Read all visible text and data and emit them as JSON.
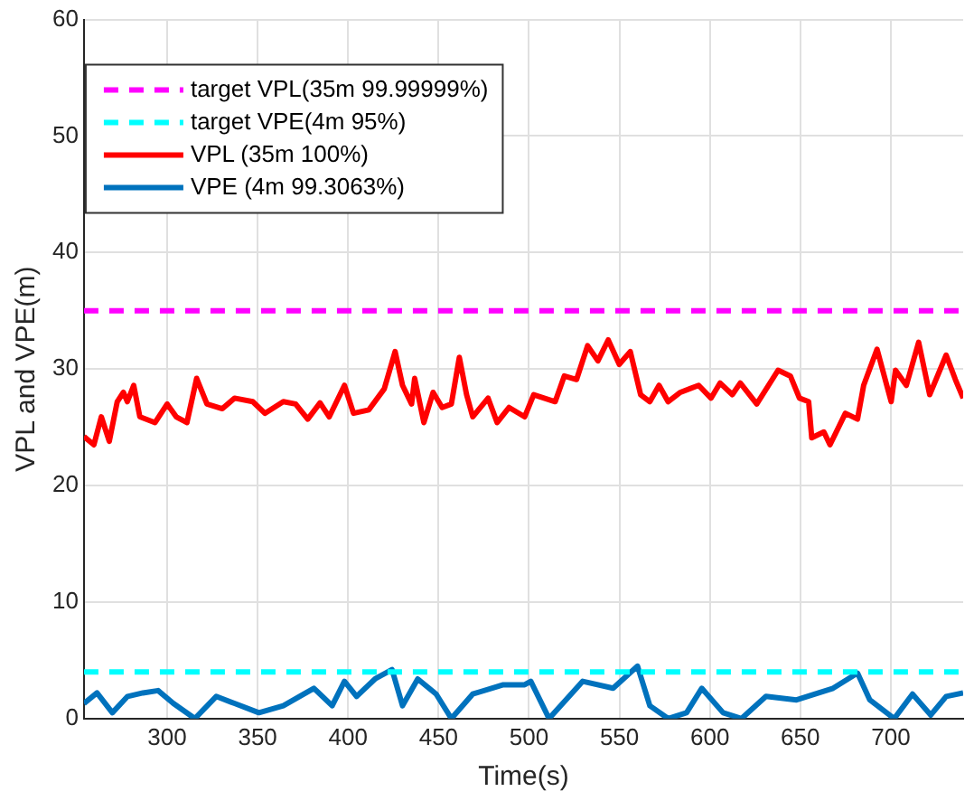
{
  "chart_data": {
    "type": "line",
    "xlabel": "Time(s)",
    "ylabel": "VPL and VPE(m)",
    "xlim": [
      254,
      740
    ],
    "xticks": [
      300,
      350,
      400,
      450,
      500,
      550,
      600,
      650,
      700
    ],
    "ylim": [
      0,
      60
    ],
    "yticks": [
      0,
      10,
      20,
      30,
      40,
      50,
      60
    ],
    "grid": true,
    "legend": "top left",
    "marker": "none",
    "series": [
      {
        "name": "target VPL(35m 99.99999%)",
        "color": "#ff00ff",
        "line_style": "dashed",
        "x": [
          254,
          740
        ],
        "values": [
          35,
          35
        ]
      },
      {
        "name": "target VPE(4m 95%)",
        "color": "#00ffff",
        "line_style": "dashed",
        "x": [
          254,
          740
        ],
        "values": [
          4,
          4
        ]
      },
      {
        "name": "VPL (35m 100%)",
        "color": "#ff0000",
        "line_style": "solid",
        "x": [
          254,
          259.5,
          263.6,
          268,
          272.4,
          275.8,
          278,
          281.5,
          284.9,
          293.3,
          300,
          305,
          310.9,
          316.3,
          322,
          330.5,
          337.2,
          347.3,
          354,
          364.2,
          371,
          377.7,
          384.5,
          389.6,
          398,
          403,
          411.5,
          420,
          426,
          430.1,
          435.1,
          436.8,
          441.9,
          447,
          452,
          457.1,
          461.5,
          465.5,
          468.9,
          477.4,
          482.4,
          489,
          497.6,
          502.6,
          514.5,
          519.5,
          526.3,
          532.4,
          538.1,
          543.8,
          549.9,
          556,
          561.7,
          566.8,
          571.9,
          576.9,
          583.7,
          593.8,
          600.6,
          605.6,
          612.4,
          616.8,
          625.9,
          637.7,
          644.5,
          649.5,
          654.6,
          656.3,
          663,
          666.4,
          674.9,
          681.6,
          685,
          692.4,
          700.2,
          702.6,
          708.6,
          715.4,
          721.5,
          730.6,
          735.7,
          740
        ],
        "values": [
          24.2,
          23.5,
          25.9,
          23.8,
          27.2,
          28,
          27.2,
          28.6,
          25.9,
          25.4,
          27,
          25.9,
          25.4,
          29.2,
          27,
          26.6,
          27.5,
          27.2,
          26.2,
          27.2,
          27,
          25.7,
          27.1,
          25.9,
          28.6,
          26.2,
          26.5,
          28.3,
          31.5,
          28.6,
          27,
          29.2,
          25.4,
          28,
          26.7,
          27,
          31,
          27.8,
          25.9,
          27.5,
          25.4,
          26.7,
          25.9,
          27.8,
          27.2,
          29.4,
          29.1,
          32,
          30.7,
          32.5,
          30.4,
          31.5,
          27.8,
          27.2,
          28.6,
          27.2,
          28,
          28.6,
          27.5,
          28.8,
          27.8,
          28.8,
          27,
          29.9,
          29.4,
          27.5,
          27.2,
          24.1,
          24.6,
          23.5,
          26.2,
          25.7,
          28.6,
          31.7,
          27.2,
          29.9,
          28.6,
          32.3,
          27.8,
          31.2,
          29.1,
          27.5
        ]
      },
      {
        "name": "VPE (4m 99.3063%)",
        "color": "#0072bd",
        "line_style": "solid",
        "x": [
          254,
          261.2,
          269.7,
          278.1,
          286.6,
          295,
          303.4,
          315.3,
          327.1,
          337.2,
          350.7,
          364.2,
          381.1,
          391.2,
          398,
          404.7,
          414.9,
          424.3,
          430.1,
          438.5,
          448.7,
          457.1,
          468.9,
          485.8,
          497.6,
          501,
          511.1,
          529.7,
          546.5,
          560,
          566.8,
          576.9,
          587.1,
          595.5,
          607.3,
          617.5,
          631,
          647.9,
          668.1,
          681.6,
          688.4,
          701.9,
          712,
          722.1,
          730.6,
          740
        ],
        "values": [
          1.3,
          2.2,
          0.5,
          1.9,
          2.2,
          2.4,
          1.3,
          0,
          1.9,
          1.3,
          0.5,
          1.1,
          2.6,
          1.1,
          3.2,
          1.9,
          3.4,
          4.2,
          1.1,
          3.4,
          2.1,
          0,
          2.1,
          2.9,
          2.9,
          3.2,
          0,
          3.2,
          2.6,
          4.5,
          1.1,
          0,
          0.5,
          2.6,
          0.5,
          0,
          1.9,
          1.6,
          2.6,
          3.9,
          1.6,
          0,
          2.1,
          0.3,
          1.9,
          2.2
        ]
      }
    ]
  }
}
